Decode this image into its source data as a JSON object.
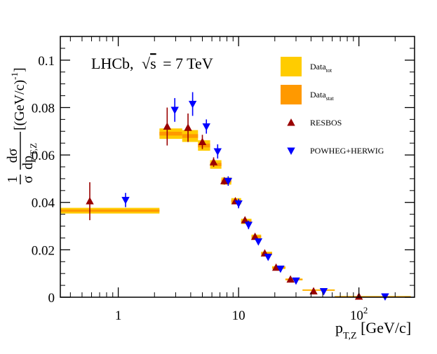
{
  "chart_data": {
    "type": "scatter",
    "title": "",
    "annotation": {
      "experiment": "LHCb,",
      "energy_text": "= 7 TeV",
      "sqrt_symbol": "√",
      "s_symbol": "s"
    },
    "xlabel": {
      "main": "p",
      "sub": "T,Z",
      "unit": " [GeV/c]"
    },
    "ylabel": {
      "frac_num": "1",
      "frac_den": "σ",
      "dnum": "dσ",
      "dden": "dp",
      "dden_sub": "T,Z",
      "unit": " [(GeV/c)",
      "unit_sup": "-1",
      "unit_close": "]"
    },
    "xscale": "log",
    "xlim": [
      0.33,
      290
    ],
    "ylim": [
      0,
      0.11
    ],
    "y_ticks": [
      0,
      0.02,
      0.04,
      0.06,
      0.08,
      0.1
    ],
    "y_tick_labels": [
      "0",
      "0.02",
      "0.04",
      "0.06",
      "0.08",
      "0.1"
    ],
    "x_ticks": [
      1,
      10,
      100
    ],
    "x_tick_labels": [
      {
        "text": "1",
        "sup": ""
      },
      {
        "text": "10",
        "sup": ""
      },
      {
        "text": "10",
        "sup": "2"
      }
    ],
    "legend": [
      {
        "key": "data_tot",
        "label": "Data",
        "sub": "tot",
        "color": "#FFCC00",
        "marker": "box"
      },
      {
        "key": "data_stat",
        "label": "Data",
        "sub": "stat",
        "color": "#FF9900",
        "marker": "box"
      },
      {
        "key": "resbos",
        "label": "RESBOS",
        "color": "#990000",
        "marker": "triangle-up"
      },
      {
        "key": "powheg",
        "label": "POWHEG+HERWIG",
        "color": "#0000FF",
        "marker": "triangle-down"
      }
    ],
    "data_bins": [
      {
        "lo": 0.0,
        "hi": 2.2,
        "y": 0.0365,
        "tot": 0.0012,
        "stat": 0.0005
      },
      {
        "lo": 2.2,
        "hi": 3.4,
        "y": 0.069,
        "tot": 0.0022,
        "stat": 0.0008
      },
      {
        "lo": 3.4,
        "hi": 4.6,
        "y": 0.068,
        "tot": 0.0025,
        "stat": 0.0008
      },
      {
        "lo": 4.6,
        "hi": 5.8,
        "y": 0.064,
        "tot": 0.0022,
        "stat": 0.0008
      },
      {
        "lo": 5.8,
        "hi": 7.2,
        "y": 0.056,
        "tot": 0.0018,
        "stat": 0.0007
      },
      {
        "lo": 7.2,
        "hi": 8.7,
        "y": 0.049,
        "tot": 0.0015,
        "stat": 0.0006
      },
      {
        "lo": 8.7,
        "hi": 10.5,
        "y": 0.0405,
        "tot": 0.0013,
        "stat": 0.0005
      },
      {
        "lo": 10.5,
        "hi": 12.8,
        "y": 0.032,
        "tot": 0.0011,
        "stat": 0.0004
      },
      {
        "lo": 12.8,
        "hi": 15.4,
        "y": 0.0255,
        "tot": 0.0009,
        "stat": 0.0004
      },
      {
        "lo": 15.4,
        "hi": 19.0,
        "y": 0.0185,
        "tot": 0.0007,
        "stat": 0.0003
      },
      {
        "lo": 19.0,
        "hi": 24.5,
        "y": 0.0125,
        "tot": 0.0006,
        "stat": 0.0002
      },
      {
        "lo": 24.5,
        "hi": 34.0,
        "y": 0.0075,
        "tot": 0.0004,
        "stat": 0.0002
      },
      {
        "lo": 34.0,
        "hi": 63.0,
        "y": 0.003,
        "tot": 0.0003,
        "stat": 0.0001
      },
      {
        "lo": 63.0,
        "hi": 270.0,
        "y": 0.0003,
        "tot": 0.0002,
        "stat": 0.0001
      }
    ],
    "series": [
      {
        "name": "RESBOS",
        "x": [
          0.58,
          2.55,
          3.8,
          5.0,
          6.2,
          7.6,
          9.4,
          11.3,
          13.7,
          16.5,
          20.5,
          27.0,
          42.0,
          100.0
        ],
        "y": [
          0.0405,
          0.072,
          0.0715,
          0.0655,
          0.057,
          0.049,
          0.0405,
          0.0325,
          0.0255,
          0.0185,
          0.0125,
          0.0075,
          0.0025,
          0.0003
        ],
        "err": [
          0.008,
          0.008,
          0.006,
          0.003,
          0.002,
          0.0015,
          0.001,
          0.0008,
          0.0007,
          0.0005,
          0.0004,
          0.0003,
          0.0002,
          0.0001
        ]
      },
      {
        "name": "POWHEG+HERWIG",
        "x": [
          1.15,
          2.95,
          4.15,
          5.4,
          6.7,
          8.2,
          10.0,
          12.1,
          14.6,
          17.6,
          22.3,
          30.0,
          51.0,
          165.0
        ],
        "y": [
          0.041,
          0.079,
          0.0815,
          0.072,
          0.0615,
          0.049,
          0.0395,
          0.0305,
          0.0235,
          0.017,
          0.012,
          0.007,
          0.0025,
          0.0003
        ],
        "err": [
          0.003,
          0.005,
          0.005,
          0.003,
          0.003,
          0.002,
          0.002,
          0.0018,
          0.0012,
          0.0008,
          0.0006,
          0.0005,
          0.0003,
          0.0002
        ]
      }
    ]
  }
}
